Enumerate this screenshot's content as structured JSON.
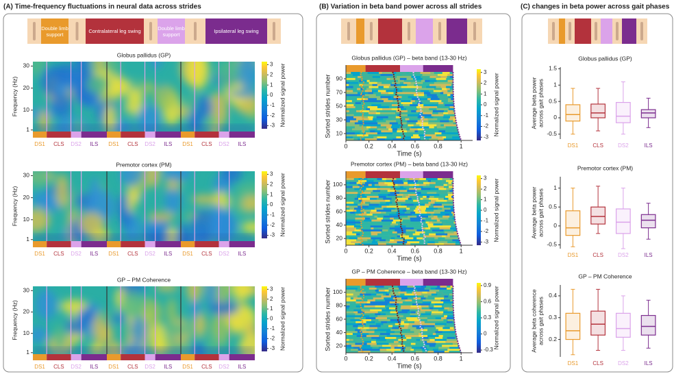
{
  "panel_titles": [
    "(A) Time-frequency fluctuations in neural data across strides",
    "(B) Variation in beta band power across all strides",
    "(C) changes in beta power across gait phases"
  ],
  "gait_strip_labels": [
    "Double limb support",
    "Contralateral leg swing",
    "Double limb support",
    "Ipsilateral leg swing"
  ],
  "phase_colors": [
    "#e99a2c",
    "#b3323c",
    "#dba3ea",
    "#7b2c8e"
  ],
  "chart_data": [
    {
      "type": "heatmap",
      "title": "Globus pallidus (GP)",
      "ylabel": "Frequency (Hz)",
      "ylim": [
        0.3,
        32
      ],
      "yticks": [
        1,
        10,
        20,
        30
      ],
      "categories": [
        "DS1",
        "CLS",
        "DS2",
        "ILS",
        "DS1",
        "CLS",
        "DS2",
        "ILS",
        "DS1",
        "CLS",
        "DS2",
        "ILS"
      ],
      "colorbar_label": "Normalized signal power",
      "clim": [
        -3.3,
        3.3
      ],
      "cticks": [
        -3,
        -2,
        -1,
        0,
        1,
        2,
        3
      ]
    },
    {
      "type": "heatmap",
      "title": "Premotor cortex (PM)",
      "ylabel": "Frequency (Hz)",
      "ylim": [
        0.3,
        32
      ],
      "yticks": [
        1,
        10,
        20,
        30
      ],
      "categories": [
        "DS1",
        "CLS",
        "DS2",
        "ILS",
        "DS1",
        "CLS",
        "DS2",
        "ILS",
        "DS1",
        "CLS",
        "DS2",
        "ILS"
      ],
      "colorbar_label": "Normalized signal power",
      "clim": [
        -3.3,
        3.3
      ],
      "cticks": [
        -3,
        -2,
        -1,
        0,
        1,
        2,
        3
      ]
    },
    {
      "type": "heatmap",
      "title": "GP – PM Coherence",
      "ylabel": "Frequency (Hz)",
      "ylim": [
        0.3,
        32
      ],
      "yticks": [
        1,
        10,
        20,
        30
      ],
      "categories": [
        "DS1",
        "CLS",
        "DS2",
        "ILS",
        "DS1",
        "CLS",
        "DS2",
        "ILS",
        "DS1",
        "CLS",
        "DS2",
        "ILS"
      ],
      "colorbar_label": "Normalized signal power",
      "clim": [
        -3.3,
        3.3
      ],
      "cticks": [
        -3,
        -2,
        -1,
        0,
        1,
        2,
        3
      ]
    },
    {
      "type": "raster",
      "title": "Globus pallidus (GP) – beta band (13-30 Hz)",
      "ylabel": "Sorted strides number",
      "xlabel": "Time (s)",
      "xlim": [
        0,
        1.1
      ],
      "xticks": [
        0,
        0.2,
        0.4,
        0.6,
        0.8,
        1
      ],
      "ylim": [
        0,
        100
      ],
      "yticks": [
        10,
        30,
        50,
        70,
        90
      ],
      "phase_edges": [
        0,
        0.17,
        0.47,
        0.67,
        0.93
      ],
      "colorbar_label": "Normalized signal power",
      "clim": [
        -3.3,
        3.3
      ],
      "cticks": [
        -3,
        -2,
        -1,
        0,
        1,
        2,
        3
      ]
    },
    {
      "type": "raster",
      "title": "Premotor cortex (PM) – beta band (13-30 Hz)",
      "ylabel": "Sorted strides number",
      "xlabel": "Time (s)",
      "xlim": [
        0,
        1.1
      ],
      "xticks": [
        0,
        0.2,
        0.4,
        0.6,
        0.8,
        1
      ],
      "ylim": [
        10,
        110
      ],
      "yticks": [
        20,
        40,
        60,
        80,
        100
      ],
      "phase_edges": [
        0,
        0.17,
        0.47,
        0.67,
        0.93
      ],
      "colorbar_label": "Normalized signal power",
      "clim": [
        -3.3,
        3.3
      ],
      "cticks": [
        -3,
        -2,
        -1,
        0,
        1,
        2,
        3
      ]
    },
    {
      "type": "raster",
      "title": "GP – PM Coherence – beta band (13-30 Hz)",
      "ylabel": "Sorted strides number",
      "xlabel": "Time (s)",
      "xlim": [
        0,
        1.1
      ],
      "xticks": [
        0,
        0.2,
        0.4,
        0.6,
        0.8,
        1
      ],
      "ylim": [
        10,
        110
      ],
      "yticks": [
        20,
        40,
        60,
        80,
        100
      ],
      "phase_edges": [
        0,
        0.17,
        0.47,
        0.67,
        0.93
      ],
      "colorbar_label": "Normalized signal power",
      "clim": [
        -0.35,
        0.95
      ],
      "cticks": [
        -0.3,
        0,
        0.3,
        0.6,
        0.9
      ]
    },
    {
      "type": "box",
      "title": "Globus pallidus (GP)",
      "ylabel": [
        "Average beta power",
        "across gait phases"
      ],
      "categories": [
        "DS1",
        "CLS",
        "DS2",
        "ILS"
      ],
      "ylim": [
        -0.65,
        1.55
      ],
      "yticks": [
        -0.5,
        0,
        0.5,
        1,
        1.5
      ],
      "boxes": [
        {
          "min": -0.5,
          "q1": -0.1,
          "median": 0.1,
          "q3": 0.4,
          "max": 0.9
        },
        {
          "min": -0.4,
          "q1": 0.0,
          "median": 0.15,
          "q3": 0.42,
          "max": 0.9
        },
        {
          "min": -0.5,
          "q1": -0.15,
          "median": 0.05,
          "q3": 0.47,
          "max": 1.1
        },
        {
          "min": -0.3,
          "q1": 0.0,
          "median": 0.15,
          "q3": 0.25,
          "max": 0.6
        }
      ]
    },
    {
      "type": "box",
      "title": "Premotor cortex (PM)",
      "ylabel": [
        "Average beta power",
        "across gait phases"
      ],
      "categories": [
        "DS1",
        "CLS",
        "DS2",
        "ILS"
      ],
      "ylim": [
        -0.6,
        1.3
      ],
      "yticks": [
        -0.5,
        0,
        0.5,
        1
      ],
      "boxes": [
        {
          "min": -0.55,
          "q1": -0.25,
          "median": -0.05,
          "q3": 0.4,
          "max": 1.0
        },
        {
          "min": -0.2,
          "q1": 0.05,
          "median": 0.25,
          "q3": 0.5,
          "max": 1.05
        },
        {
          "min": -0.6,
          "q1": -0.2,
          "median": 0.1,
          "q3": 0.45,
          "max": 1.0
        },
        {
          "min": -0.35,
          "q1": -0.05,
          "median": 0.15,
          "q3": 0.3,
          "max": 0.6
        }
      ]
    },
    {
      "type": "box",
      "title": "GP – PM Coherence",
      "ylabel": [
        "Average beta coherence",
        "across gait phases"
      ],
      "categories": [
        "DS1",
        "CLS",
        "DS2",
        "ILS"
      ],
      "ylim": [
        0.12,
        0.45
      ],
      "yticks": [
        0.2,
        0.3,
        0.4
      ],
      "boxes": [
        {
          "min": 0.13,
          "q1": 0.2,
          "median": 0.24,
          "q3": 0.32,
          "max": 0.43
        },
        {
          "min": 0.15,
          "q1": 0.22,
          "median": 0.27,
          "q3": 0.33,
          "max": 0.43
        },
        {
          "min": 0.15,
          "q1": 0.21,
          "median": 0.25,
          "q3": 0.32,
          "max": 0.4
        },
        {
          "min": 0.16,
          "q1": 0.22,
          "median": 0.26,
          "q3": 0.31,
          "max": 0.38
        }
      ]
    }
  ]
}
